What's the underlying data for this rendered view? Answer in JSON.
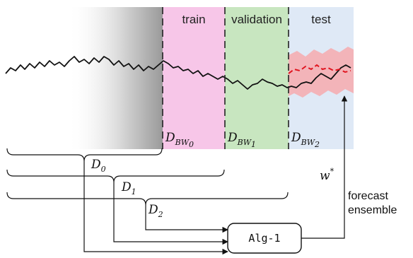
{
  "regions": {
    "train": {
      "label": "train",
      "color": "#f7c6e8"
    },
    "validation": {
      "label": "validation",
      "color": "#c8e6c0"
    },
    "test": {
      "label": "test",
      "color": "#dfe9f6"
    }
  },
  "dataset_labels": {
    "d_bw0": {
      "base": "D",
      "sub_base": "BW",
      "sub_index": "0"
    },
    "d_bw1": {
      "base": "D",
      "sub_base": "BW",
      "sub_index": "1"
    },
    "d_bw2": {
      "base": "D",
      "sub_base": "BW",
      "sub_index": "2"
    }
  },
  "braces": {
    "d0": {
      "base": "D",
      "index": "0"
    },
    "d1": {
      "base": "D",
      "index": "1"
    },
    "d2": {
      "base": "D",
      "index": "2"
    }
  },
  "algorithm_box": {
    "label": "Alg-1"
  },
  "output_weight": {
    "label": "w",
    "superscript": "*"
  },
  "side_text": {
    "line1": "forecast",
    "line2": "ensemble"
  },
  "colors": {
    "series": "#111111",
    "forecast_mean": "#e0141e",
    "forecast_band": "#f3b4b9",
    "divider": "#222222"
  }
}
